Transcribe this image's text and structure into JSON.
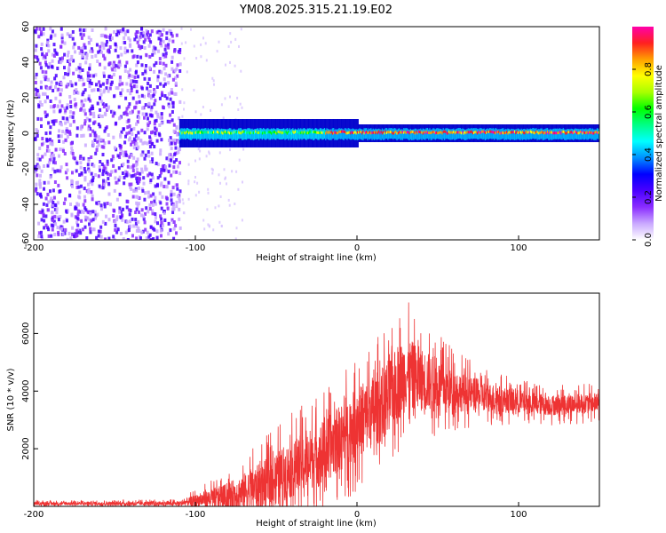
{
  "chart_data": [
    {
      "type": "heatmap",
      "title": "YM08.2025.315.21.19.E02",
      "xlabel": "Height of straight line (km)",
      "ylabel": "Frequency (Hz)",
      "xlim": [
        -200,
        150
      ],
      "ylim": [
        -60,
        60
      ],
      "xticks": [
        -200,
        -100,
        0,
        100
      ],
      "yticks": [
        -60,
        -40,
        -20,
        0,
        20,
        40,
        60
      ],
      "colorbar": {
        "label": "Normalized spectral amplitude",
        "range": [
          0,
          1
        ],
        "ticks": [
          "0.0",
          "0.2",
          "0.4",
          "0.6",
          "0.8"
        ],
        "colormap": [
          "#ffffff",
          "#c9a8ff",
          "#8a2cff",
          "#4a00ff",
          "#0000ff",
          "#0090ff",
          "#00ffff",
          "#00ff88",
          "#00ff00",
          "#a8ff00",
          "#ffff00",
          "#ffa000",
          "#ff2020",
          "#ff00aa"
        ]
      },
      "regions": [
        {
          "name": "noise",
          "x": [
            -200,
            -110
          ],
          "freq": [
            -60,
            60
          ],
          "amplitude": "0.0-0.2"
        },
        {
          "name": "signal-band",
          "x": [
            -110,
            150
          ],
          "freq_center": 0,
          "freq_halfwidth": 4,
          "amplitude": "0.3-1.0"
        }
      ]
    },
    {
      "type": "line",
      "xlabel": "Height of straight line (km)",
      "ylabel": "SNR (10 * v/v)",
      "xlim": [
        -200,
        150
      ],
      "ylim": [
        0,
        7400
      ],
      "xticks": [
        -200,
        -100,
        0,
        100
      ],
      "yticks": [
        2000,
        4000,
        6000
      ],
      "color": "#ee3333",
      "envelope": [
        {
          "x": -200,
          "base": 100,
          "amp": 100
        },
        {
          "x": -110,
          "base": 100,
          "amp": 150
        },
        {
          "x": -100,
          "base": 200,
          "amp": 400
        },
        {
          "x": -80,
          "base": 350,
          "amp": 900
        },
        {
          "x": -60,
          "base": 700,
          "amp": 1600
        },
        {
          "x": -40,
          "base": 1300,
          "amp": 2000
        },
        {
          "x": -20,
          "base": 1900,
          "amp": 2200
        },
        {
          "x": 0,
          "base": 2900,
          "amp": 2400
        },
        {
          "x": 15,
          "base": 3500,
          "amp": 2600
        },
        {
          "x": 30,
          "base": 4600,
          "amp": 2600
        },
        {
          "x": 50,
          "base": 4200,
          "amp": 1800
        },
        {
          "x": 70,
          "base": 3900,
          "amp": 1200
        },
        {
          "x": 90,
          "base": 3700,
          "amp": 900
        },
        {
          "x": 120,
          "base": 3500,
          "amp": 700
        },
        {
          "x": 150,
          "base": 3600,
          "amp": 700
        }
      ]
    }
  ]
}
